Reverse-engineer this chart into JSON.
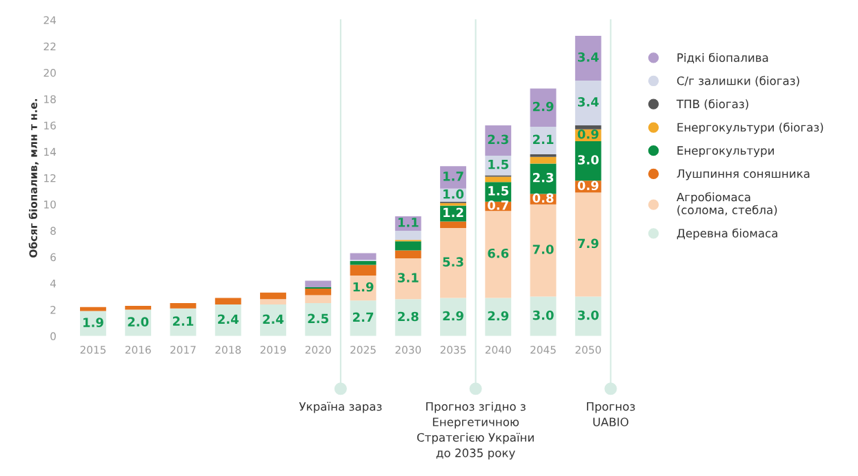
{
  "chart_data": {
    "type": "bar",
    "stacked": true,
    "ylabel": "Обсяг біопалив, млн т н.е.",
    "categories": [
      "2015",
      "2016",
      "2017",
      "2018",
      "2019",
      "2020",
      "2025",
      "2030",
      "2035",
      "2040",
      "2045",
      "2050"
    ],
    "series": [
      {
        "name": "Деревна біомаса",
        "color": "#d6ece2",
        "values": [
          1.9,
          2.0,
          2.1,
          2.4,
          2.4,
          2.5,
          2.7,
          2.8,
          2.9,
          2.9,
          3.0,
          3.0
        ],
        "value_labels": [
          "1.9",
          "2.0",
          "2.1",
          "2.4",
          "2.4",
          "2.5",
          "2.7",
          "2.8",
          "2.9",
          "2.9",
          "3.0",
          "3.0"
        ]
      },
      {
        "name": "Агробіомаса\n(солома, стебла)",
        "color": "#fad3b4",
        "values": [
          0,
          0,
          0,
          0,
          0.4,
          0.6,
          1.9,
          3.1,
          5.3,
          6.6,
          7.0,
          7.9
        ],
        "value_labels": [
          null,
          null,
          null,
          null,
          null,
          null,
          "1.9",
          "3.1",
          "5.3",
          "6.6",
          "7.0",
          "7.9"
        ]
      },
      {
        "name": "Лушпиння соняшника",
        "color": "#e5721c",
        "values": [
          0.3,
          0.3,
          0.4,
          0.5,
          0.5,
          0.5,
          0.8,
          0.6,
          0.5,
          0.7,
          0.8,
          0.9
        ],
        "value_labels": [
          null,
          null,
          null,
          null,
          null,
          null,
          null,
          null,
          null,
          "0.7",
          "0.8",
          "0.9"
        ]
      },
      {
        "name": "Енергокультури",
        "color": "#0b8f45",
        "values": [
          0,
          0,
          0,
          0,
          0,
          0.1,
          0.3,
          0.7,
          1.2,
          1.5,
          2.3,
          3.0
        ],
        "value_labels": [
          null,
          null,
          null,
          null,
          null,
          null,
          null,
          null,
          "1.2",
          "1.5",
          "2.3",
          "3.0"
        ]
      },
      {
        "name": "Енергокультури (біогаз)",
        "color": "#f2aa2a",
        "values": [
          0,
          0,
          0,
          0,
          0,
          0,
          0,
          0.1,
          0.2,
          0.4,
          0.5,
          0.9
        ],
        "value_labels": [
          null,
          null,
          null,
          null,
          null,
          null,
          null,
          null,
          null,
          null,
          null,
          "0.9"
        ]
      },
      {
        "name": "ТПВ (біогаз)",
        "color": "#555555",
        "values": [
          0,
          0,
          0,
          0,
          0,
          0,
          0,
          0,
          0.1,
          0.1,
          0.2,
          0.3
        ],
        "value_labels": [
          null,
          null,
          null,
          null,
          null,
          null,
          null,
          null,
          null,
          null,
          null,
          null
        ]
      },
      {
        "name": "С/г залишки (біогаз)",
        "color": "#d3d8e8",
        "values": [
          0,
          0,
          0,
          0,
          0,
          0,
          0.1,
          0.7,
          1.0,
          1.5,
          2.1,
          3.4
        ],
        "value_labels": [
          null,
          null,
          null,
          null,
          null,
          null,
          null,
          null,
          "1.0",
          "1.5",
          "2.1",
          "3.4"
        ]
      },
      {
        "name": "Рідкі біопалива",
        "color": "#b39dcc",
        "values": [
          0,
          0,
          0,
          0,
          0,
          0.5,
          0.5,
          1.1,
          1.7,
          2.3,
          2.9,
          3.4
        ],
        "value_labels": [
          null,
          null,
          null,
          null,
          null,
          null,
          null,
          "1.1",
          "1.7",
          "2.3",
          "2.9",
          "3.4"
        ]
      }
    ],
    "ylim": [
      0,
      24
    ],
    "yticks": [
      0,
      2,
      4,
      6,
      8,
      10,
      12,
      14,
      16,
      18,
      20,
      22,
      24
    ],
    "annotations": [
      "Україна зараз",
      "Прогноз згідно з\nЕнергетичною\nСтратегією України\nдо 2035 року",
      "Прогноз\nUABIO"
    ],
    "legend": "right",
    "marker": "circle",
    "grid": false
  }
}
